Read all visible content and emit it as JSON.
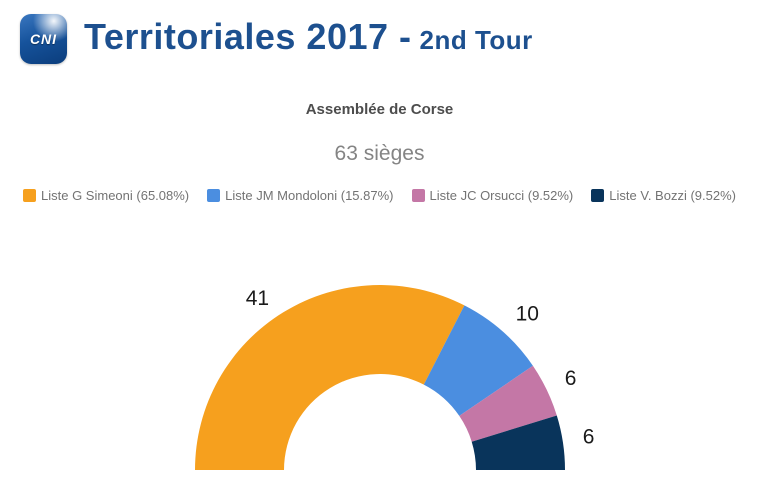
{
  "header": {
    "logo_text": "CNI",
    "title_main": "Territoriales 2017 -",
    "title_tour": "2nd Tour",
    "title_color": "#1d508f"
  },
  "chart_data": {
    "type": "pie",
    "variant": "half-donut",
    "title": "Assemblée de Corse",
    "subtitle": "63 sièges",
    "total_seats": 63,
    "start_angle_deg": 180,
    "end_angle_deg": 0,
    "inner_radius_ratio": 0.52,
    "legend_position": "top",
    "series": [
      {
        "name": "Liste G Simeoni",
        "seats": 41,
        "percent": "65.08%",
        "color": "#F6A01E"
      },
      {
        "name": "Liste JM Mondoloni",
        "seats": 10,
        "percent": "15.87%",
        "color": "#4B8EE0"
      },
      {
        "name": "Liste JC Orsucci",
        "seats": 6,
        "percent": "9.52%",
        "color": "#C477A6"
      },
      {
        "name": "Liste V. Bozzi",
        "seats": 6,
        "percent": "9.52%",
        "color": "#09345B"
      }
    ]
  }
}
